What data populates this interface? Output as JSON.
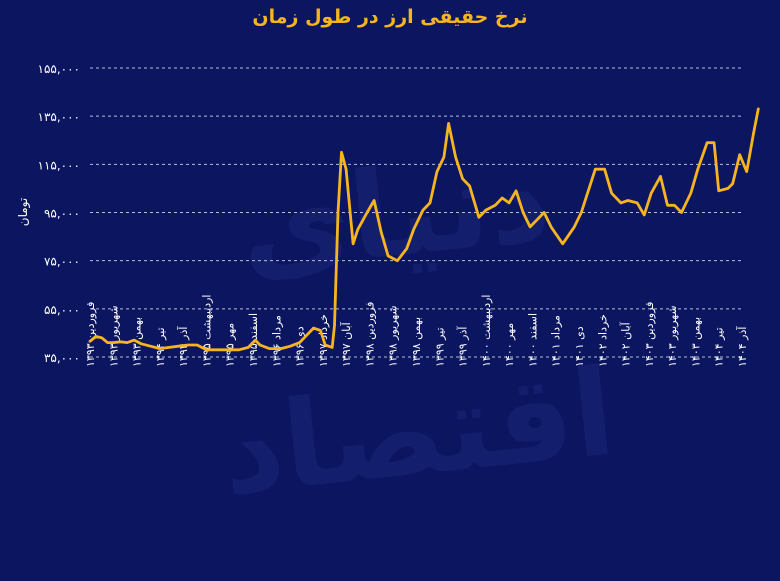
{
  "chart_data": {
    "type": "line",
    "title": "نرخ حقیقی ارز در طول زمان",
    "ylabel": "تومان",
    "xlabel": "",
    "ylim": [
      35000,
      155000
    ],
    "yticks": [
      "۳۵,۰۰۰",
      "۵۵,۰۰۰",
      "۷۵,۰۰۰",
      "۹۵,۰۰۰",
      "۱۱۵,۰۰۰",
      "۱۳۵,۰۰۰",
      "۱۵۵,۰۰۰"
    ],
    "grid": true,
    "colors": {
      "background": "#0b1560",
      "line": "#f6b51e",
      "grid": "#d9dbe6",
      "text": "#ffffff",
      "title": "#f6b51e"
    },
    "categories": [
      "فروردین ۱۳۹۳",
      "شهریور ۱۳۹۳",
      "بهمن ۱۳۹۳",
      "تیر ۱۳۹۴",
      "آذر ۱۳۹۴",
      "اردیبهشت ۱۳۹۵",
      "مهر ۱۳۹۵",
      "اسفند ۱۳۹۵",
      "مرداد ۱۳۹۶",
      "دی ۱۳۹۶",
      "خرداد ۱۳۹۷",
      "آبان ۱۳۹۷",
      "فروردین ۱۳۹۸",
      "شهریور ۱۳۹۸",
      "بهمن ۱۳۹۸",
      "تیر ۱۳۹۹",
      "آذر ۱۳۹۹",
      "اردیبهشت ۱۴۰۰",
      "مهر ۱۴۰۰",
      "اسفند ۱۴۰۰",
      "مرداد ۱۴۰۱",
      "دی ۱۴۰۱",
      "خرداد ۱۴۰۲",
      "آبان ۱۴۰۲",
      "فروردین ۱۴۰۳",
      "شهریور ۱۴۰۳",
      "بهمن ۱۴۰۳",
      "تیر ۱۴۰۴",
      "آذر ۱۴۰۴"
    ],
    "series": [
      {
        "values": [
          [
            0,
            41500
          ],
          [
            0.25,
            43500
          ],
          [
            0.5,
            43000
          ],
          [
            0.75,
            41000
          ],
          [
            1,
            41000
          ],
          [
            1.3,
            41300
          ],
          [
            1.6,
            41000
          ],
          [
            1.9,
            42000
          ],
          [
            2.2,
            40500
          ],
          [
            2.6,
            39500
          ],
          [
            3,
            38500
          ],
          [
            3.4,
            39000
          ],
          [
            3.8,
            39500
          ],
          [
            4.2,
            40000
          ],
          [
            4.6,
            40000
          ],
          [
            5,
            38000
          ],
          [
            5.5,
            38000
          ],
          [
            6,
            38000
          ],
          [
            6.4,
            38000
          ],
          [
            6.8,
            39000
          ],
          [
            7.1,
            42000
          ],
          [
            7.3,
            40000
          ],
          [
            7.7,
            38500
          ],
          [
            8.2,
            38500
          ],
          [
            8.6,
            39500
          ],
          [
            9,
            41000
          ],
          [
            9.3,
            44000
          ],
          [
            9.6,
            47000
          ],
          [
            9.9,
            46000
          ],
          [
            10.1,
            40000
          ],
          [
            10.4,
            39000
          ],
          [
            10.5,
            48000
          ],
          [
            10.65,
            95000
          ],
          [
            10.8,
            120000
          ],
          [
            11,
            113000
          ],
          [
            11.3,
            82000
          ],
          [
            11.5,
            88000
          ],
          [
            11.9,
            95000
          ],
          [
            12.2,
            100000
          ],
          [
            12.5,
            87000
          ],
          [
            12.8,
            77000
          ],
          [
            13.2,
            75000
          ],
          [
            13.6,
            80000
          ],
          [
            13.9,
            88000
          ],
          [
            14.3,
            96000
          ],
          [
            14.6,
            99000
          ],
          [
            14.9,
            112000
          ],
          [
            15.2,
            118000
          ],
          [
            15.4,
            132000
          ],
          [
            15.7,
            118000
          ],
          [
            16,
            109000
          ],
          [
            16.3,
            106000
          ],
          [
            16.7,
            93000
          ],
          [
            17,
            96000
          ],
          [
            17.4,
            98000
          ],
          [
            17.7,
            101000
          ],
          [
            18,
            99000
          ],
          [
            18.3,
            104000
          ],
          [
            18.6,
            95000
          ],
          [
            18.9,
            89000
          ],
          [
            19.2,
            92000
          ],
          [
            19.5,
            95000
          ],
          [
            19.8,
            89000
          ],
          [
            20.3,
            82000
          ],
          [
            20.8,
            89000
          ],
          [
            21.1,
            95000
          ],
          [
            21.4,
            104000
          ],
          [
            21.7,
            113000
          ],
          [
            22.1,
            113000
          ],
          [
            22.4,
            103000
          ],
          [
            22.8,
            99000
          ],
          [
            23.1,
            100000
          ],
          [
            23.5,
            99000
          ],
          [
            23.8,
            94000
          ],
          [
            24.1,
            103000
          ],
          [
            24.5,
            110000
          ],
          [
            24.8,
            98000
          ],
          [
            25.1,
            98000
          ],
          [
            25.4,
            95000
          ],
          [
            25.8,
            103000
          ],
          [
            26.1,
            113000
          ],
          [
            26.5,
            124000
          ],
          [
            26.8,
            124000
          ],
          [
            27,
            104000
          ],
          [
            27.4,
            105000
          ],
          [
            27.6,
            107000
          ],
          [
            27.9,
            119000
          ],
          [
            28.2,
            112000
          ],
          [
            28.5,
            128000
          ],
          [
            28.7,
            138000
          ]
        ]
      }
    ]
  },
  "watermark": "دنیای اقتصاد"
}
